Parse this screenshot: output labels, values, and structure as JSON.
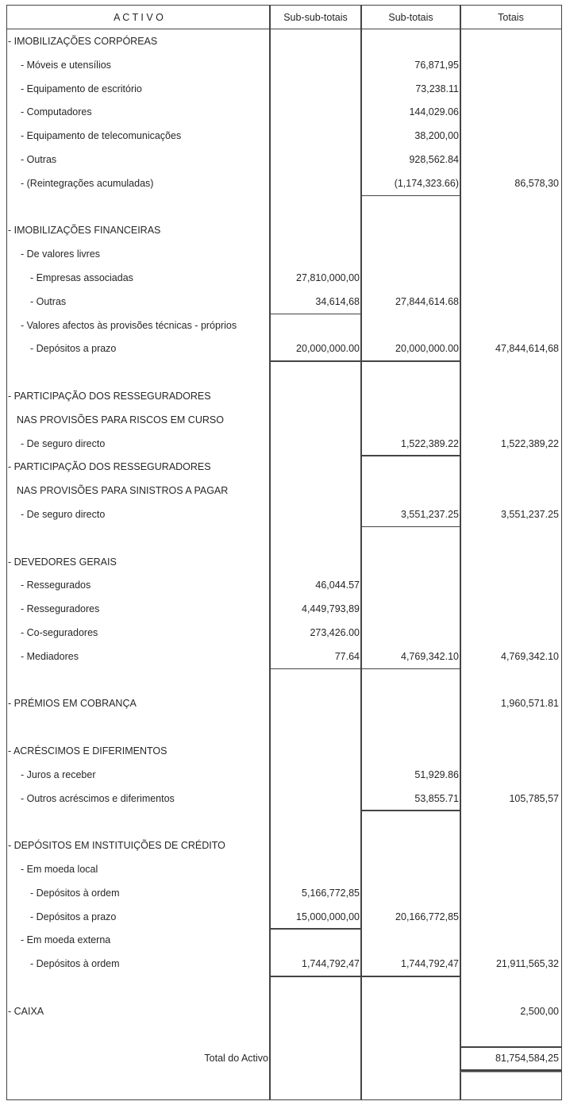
{
  "header": {
    "activo": "A C T I V O",
    "sub_sub_totais": "Sub-sub-totais",
    "sub_totais": "Sub-totais",
    "totais": "Totais"
  },
  "rows": [
    {
      "label": "- IMOBILIZAÇÕES CORPÓREAS",
      "level": "0"
    },
    {
      "label": "- Móveis e utensílios",
      "level": "1",
      "sub": "76,871,95"
    },
    {
      "label": "- Equipamento de escritório",
      "level": "1",
      "sub": "73,238.11"
    },
    {
      "label": "- Computadores",
      "level": "1",
      "sub": "144,029.06"
    },
    {
      "label": "- Equipamento de telecomunicações",
      "level": "1",
      "sub": "38,200,00"
    },
    {
      "label": "- Outras",
      "level": "1",
      "sub": "928,562.84"
    },
    {
      "label": "- (Reintegrações acumuladas)",
      "level": "1",
      "sub": "(1,174,323.66)",
      "total": "86,578,30"
    },
    {},
    {
      "label": "- IMOBILIZAÇÕES FINANCEIRAS",
      "level": "0"
    },
    {
      "label": "- De valores livres",
      "level": "1"
    },
    {
      "label": "- Empresas associadas",
      "level": "2",
      "sub_sub": "27,810,000,00"
    },
    {
      "label": "- Outras",
      "level": "2",
      "sub_sub": "34,614,68",
      "sub": "27,844,614.68"
    },
    {
      "label": "- Valores afectos  às provisões técnicas - próprios",
      "level": "1"
    },
    {
      "label": "- Depósitos a prazo",
      "level": "2",
      "sub_sub": "20,000,000.00",
      "sub": "20,000,000.00",
      "total": "47,844,614,68"
    },
    {},
    {
      "label": "- PARTICIPAÇÃO DOS RESSEGURADORES",
      "level": "0"
    },
    {
      "label": "NAS PROVISÕES PARA RISCOS EM CURSO",
      "level": "c"
    },
    {
      "label": "- De seguro directo",
      "level": "1",
      "sub": "1,522,389.22",
      "total": "1,522,389,22"
    },
    {
      "label": "- PARTICIPAÇÃO DOS RESSEGURADORES",
      "level": "0"
    },
    {
      "label": "NAS PROVISÕES PARA SINISTROS A PAGAR",
      "level": "c"
    },
    {
      "label": "- De seguro directo",
      "level": "1",
      "sub": "3,551,237.25",
      "total": "3,551,237.25"
    },
    {},
    {
      "label": "- DEVEDORES GERAIS",
      "level": "0"
    },
    {
      "label": "- Ressegurados",
      "level": "1",
      "sub_sub": "46,044.57"
    },
    {
      "label": "- Resseguradores",
      "level": "1",
      "sub_sub": "4,449,793,89"
    },
    {
      "label": "- Co-seguradores",
      "level": "1",
      "sub_sub": "273,426.00"
    },
    {
      "label": "- Mediadores",
      "level": "1",
      "sub_sub": "77.64",
      "sub": "4,769,342.10",
      "total": "4,769,342.10"
    },
    {},
    {
      "label": "- PRÉMIOS EM COBRANÇA",
      "level": "0",
      "total": "1,960,571.81"
    },
    {},
    {
      "label": "- ACRÉSCIMOS E DIFERIMENTOS",
      "level": "0"
    },
    {
      "label": "- Juros a receber",
      "level": "1",
      "sub": "51,929.86"
    },
    {
      "label": "- Outros acréscimos e diferimentos",
      "level": "1",
      "sub": "53,855.71",
      "total": "105,785,57"
    },
    {},
    {
      "label": "- DEPÓSITOS EM INSTITUIÇÕES DE CRÉDITO",
      "level": "0"
    },
    {
      "label": "- Em moeda local",
      "level": "1"
    },
    {
      "label": "- Depósitos  à  ordem",
      "level": "2",
      "sub_sub": "5,166,772,85"
    },
    {
      "label": "- Depósitos a prazo",
      "level": "2",
      "sub_sub": "15,000,000,00",
      "sub": "20,166,772,85"
    },
    {
      "label": "- Em moeda externa",
      "level": "1"
    },
    {
      "label": "- Depósitos  à  ordem",
      "level": "2",
      "sub_sub": "1,744,792,47",
      "sub": "1,744,792,47",
      "total": "21,911,565,32"
    },
    {},
    {
      "label": "- CAIXA",
      "level": "0",
      "total": "2,500,00"
    },
    {},
    {
      "label": "Total do Activo",
      "level": "r",
      "total": "81,754,584,25"
    }
  ]
}
